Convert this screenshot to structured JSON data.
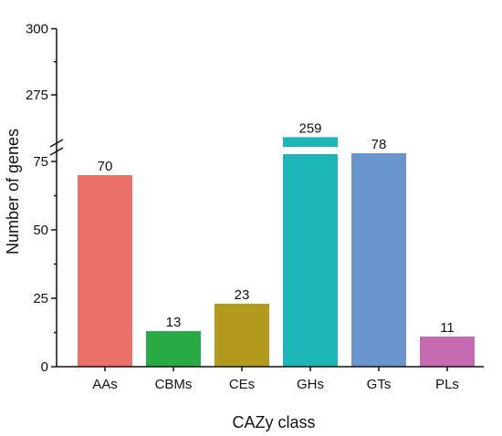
{
  "chart_data": {
    "type": "bar",
    "title": "",
    "xlabel": "CAZy class",
    "ylabel": "Number of genes",
    "categories": [
      "AAs",
      "CBMs",
      "CEs",
      "GHs",
      "GTs",
      "PLs"
    ],
    "values": [
      70,
      13,
      23,
      259,
      78,
      11
    ],
    "colors": [
      "#ea7069",
      "#2aaa44",
      "#b29a1c",
      "#1cb6b9",
      "#6795cc",
      "#c46bb1"
    ],
    "axis_break": {
      "lower_range": [
        0,
        80
      ],
      "upper_range": [
        255,
        300
      ]
    },
    "yticks_lower": [
      0,
      25,
      50,
      75
    ],
    "yticks_upper": [
      275,
      300
    ],
    "grid": false,
    "legend": "none"
  }
}
